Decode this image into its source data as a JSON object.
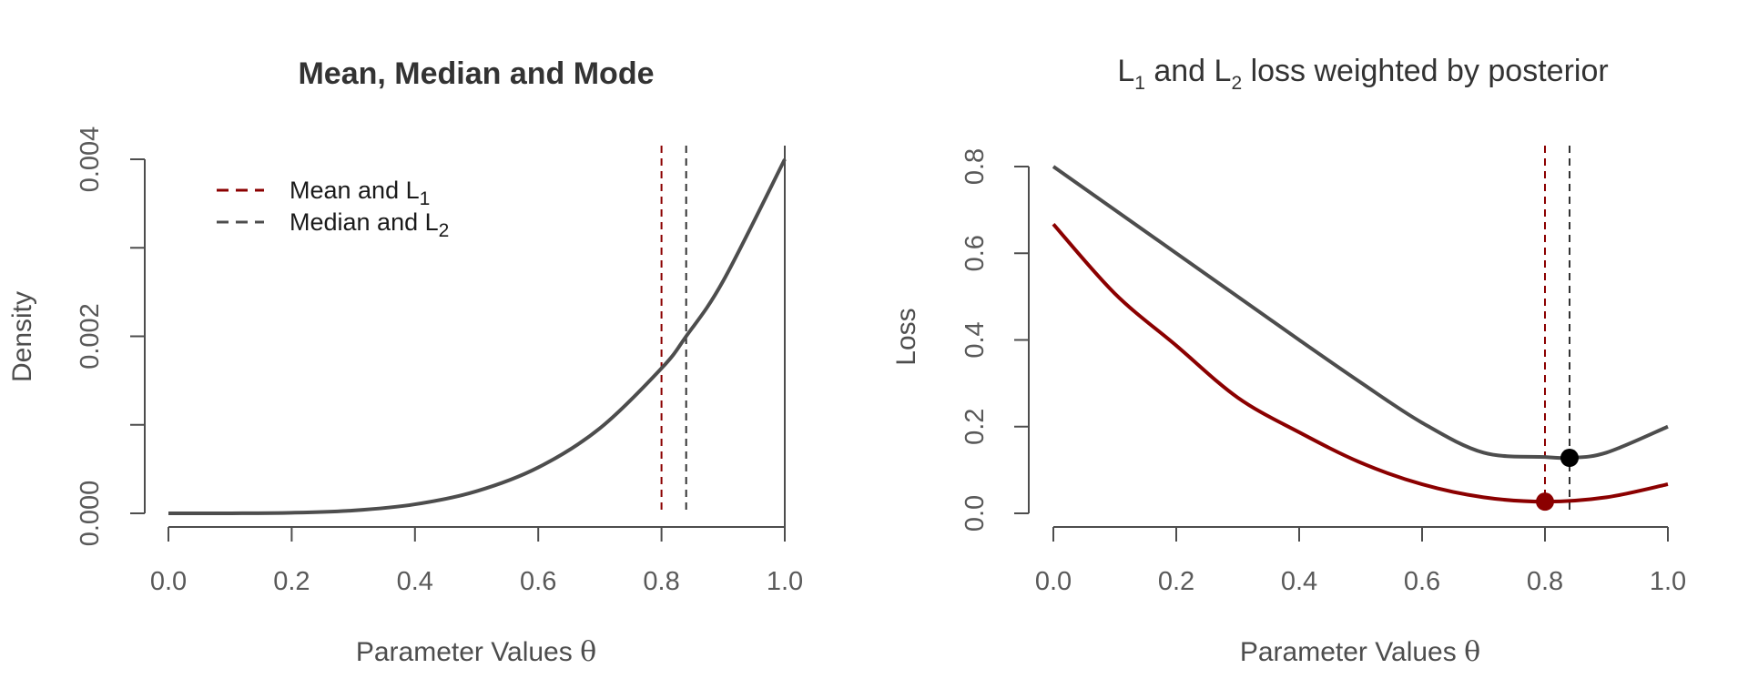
{
  "chart_data": [
    {
      "type": "line",
      "title": "Mean, Median and Mode",
      "xlabel_text": "Parameter Values ",
      "xlabel_symbol": "θ",
      "ylabel": "Density",
      "xlim": [
        0,
        1
      ],
      "ylim": [
        0,
        0.004
      ],
      "x_ticks": [
        "0.0",
        "0.2",
        "0.4",
        "0.6",
        "0.8",
        "1.0"
      ],
      "y_ticks": [
        "0.000",
        "0.002",
        "0.004"
      ],
      "y_tick_values": [
        0,
        0.001,
        0.002,
        0.003,
        0.004
      ],
      "series": [
        {
          "color": "#4d4d4d",
          "x": [
            0.0,
            0.1,
            0.2,
            0.3,
            0.4,
            0.5,
            0.6,
            0.7,
            0.8,
            0.84,
            0.9,
            1.0
          ],
          "y": [
            0.0,
            4e-07,
            6.4e-06,
            3.24e-05,
            0.0001024,
            0.00025,
            0.0005184,
            0.0009604,
            0.0016384,
            0.002,
            0.0026244,
            0.004
          ]
        }
      ],
      "vlines": [
        {
          "x": 0.8,
          "color": "#8b0000",
          "style": "dashed"
        },
        {
          "x": 0.84,
          "color": "#333333",
          "style": "dashed"
        }
      ],
      "legend": {
        "placement": "top-left",
        "entries": [
          {
            "label": "Mean and L",
            "sub": "1",
            "color": "#8b0000",
            "style": "dashed"
          },
          {
            "label": "Median and L",
            "sub": "2",
            "color": "#4d4d4d",
            "style": "dashed"
          }
        ]
      }
    },
    {
      "type": "line",
      "title_part1": "L",
      "title_sub1": "1",
      "title_part2": " and L",
      "title_sub2": "2",
      "title_part3": " loss weighted by posterior",
      "xlabel_text": "Parameter Values ",
      "xlabel_symbol": "θ",
      "ylabel": "Loss",
      "xlim": [
        0,
        1
      ],
      "ylim": [
        0,
        0.8
      ],
      "x_ticks": [
        "0.0",
        "0.2",
        "0.4",
        "0.6",
        "0.8",
        "1.0"
      ],
      "y_ticks": [
        "0.0",
        "0.2",
        "0.4",
        "0.6",
        "0.8"
      ],
      "y_tick_values": [
        0.0,
        0.2,
        0.4,
        0.6,
        0.8
      ],
      "series": [
        {
          "color": "#4d4d4d",
          "x": [
            0.0,
            0.1,
            0.2,
            0.3,
            0.4,
            0.5,
            0.6,
            0.7,
            0.8,
            0.84,
            0.9,
            1.0
          ],
          "y": [
            0.8,
            0.7,
            0.6,
            0.5,
            0.4,
            0.302,
            0.209,
            0.14,
            0.13,
            0.128,
            0.14,
            0.2
          ]
        },
        {
          "color": "#8b0000",
          "x": [
            0.0,
            0.1,
            0.2,
            0.3,
            0.4,
            0.5,
            0.6,
            0.7,
            0.8,
            0.9,
            1.0
          ],
          "y": [
            0.667,
            0.507,
            0.387,
            0.267,
            0.187,
            0.117,
            0.067,
            0.037,
            0.027,
            0.037,
            0.067
          ]
        }
      ],
      "points": [
        {
          "x": 0.8,
          "y": 0.027,
          "color": "#8b0000"
        },
        {
          "x": 0.84,
          "y": 0.128,
          "color": "#000000"
        }
      ],
      "vlines": [
        {
          "x": 0.8,
          "color": "#8b0000",
          "style": "dashed"
        },
        {
          "x": 0.84,
          "color": "#333333",
          "style": "dashed"
        }
      ]
    }
  ]
}
